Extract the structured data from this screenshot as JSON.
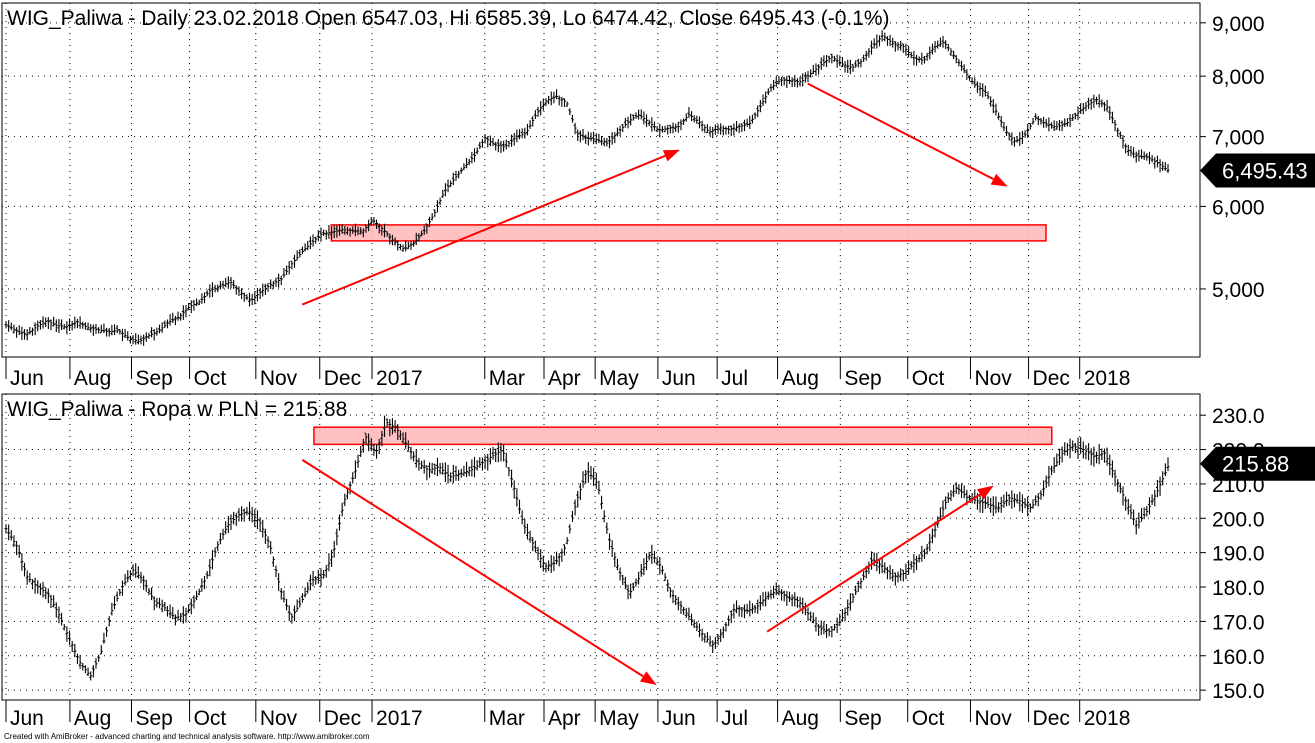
{
  "footer": "Created with AmiBroker - advanced charting and technical analysis software. http://www.amibroker.com",
  "colors": {
    "annotation": "#ff0000",
    "zone_fill": "#ffb6b6",
    "price": "#000000",
    "grid": "#000000"
  },
  "chart_data": [
    {
      "type": "line",
      "style": "ohlc-bars",
      "title": "WIG_Paliwa - Daily 23.02.2018 Open 6547.03, Hi 6585.39, Lo 6474.42, Close 6495.43 (-0.1%)",
      "scale": "log",
      "ylim": [
        4350,
        9300
      ],
      "y_ticks": [
        5000,
        6000,
        7000,
        8000,
        9000
      ],
      "y_tick_labels": [
        "5,000",
        "6,000",
        "7,000",
        "8,000",
        "9,000"
      ],
      "last_value_label": "6,495.43",
      "last_value": 6495.43,
      "grid": "dotted horizontal and vertical",
      "x_ticks": [
        {
          "label": "Jun",
          "t": 0.0
        },
        {
          "label": "Aug",
          "t": 0.055
        },
        {
          "label": "Sep",
          "t": 0.108
        },
        {
          "label": "Oct",
          "t": 0.158
        },
        {
          "label": "Nov",
          "t": 0.215
        },
        {
          "label": "Dec",
          "t": 0.27
        },
        {
          "label": "2017",
          "t": 0.315
        },
        {
          "label": "Mar",
          "t": 0.412
        },
        {
          "label": "Apr",
          "t": 0.463
        },
        {
          "label": "May",
          "t": 0.507
        },
        {
          "label": "Jun",
          "t": 0.561
        },
        {
          "label": "Jul",
          "t": 0.612
        },
        {
          "label": "Aug",
          "t": 0.664
        },
        {
          "label": "Sep",
          "t": 0.718
        },
        {
          "label": "Oct",
          "t": 0.776
        },
        {
          "label": "Nov",
          "t": 0.83
        },
        {
          "label": "Dec",
          "t": 0.88
        },
        {
          "label": "2018",
          "t": 0.924
        }
      ],
      "series": [
        {
          "values": [
            4620,
            4560,
            4520,
            4600,
            4660,
            4610,
            4600,
            4650,
            4590,
            4570,
            4550,
            4560,
            4490,
            4450,
            4510,
            4560,
            4650,
            4700,
            4810,
            4860,
            4980,
            5030,
            5080,
            4960,
            4870,
            4970,
            5050,
            5110,
            5280,
            5420,
            5540,
            5650,
            5670,
            5700,
            5690,
            5680,
            5820,
            5700,
            5560,
            5460,
            5530,
            5680,
            5900,
            6200,
            6380,
            6550,
            6720,
            6980,
            6870,
            6850,
            6990,
            7050,
            7350,
            7580,
            7650,
            7550,
            7050,
            6980,
            6950,
            6900,
            7060,
            7230,
            7350,
            7240,
            7100,
            7130,
            7160,
            7350,
            7230,
            7070,
            7140,
            7110,
            7160,
            7210,
            7480,
            7790,
            7930,
            7920,
            7900,
            8050,
            8210,
            8350,
            8220,
            8150,
            8280,
            8540,
            8750,
            8600,
            8550,
            8330,
            8280,
            8520,
            8630,
            8370,
            8100,
            7850,
            7740,
            7450,
            7100,
            6920,
            7030,
            7300,
            7200,
            7150,
            7200,
            7350,
            7500,
            7600,
            7480,
            7120,
            6800,
            6700,
            6690,
            6600,
            6500
          ]
        }
      ],
      "annotations": [
        {
          "kind": "zone",
          "from_t": 0.28,
          "to_t": 0.895,
          "y_low": 5560,
          "y_high": 5760
        },
        {
          "kind": "arrow",
          "t1": 0.255,
          "y1": 4830,
          "t2": 0.58,
          "y2": 6800
        },
        {
          "kind": "arrow",
          "t1": 0.69,
          "y1": 7870,
          "t2": 0.862,
          "y2": 6270
        }
      ]
    },
    {
      "type": "line",
      "style": "ohlc-bars",
      "title": "WIG_Paliwa - Ropa w PLN = 215.88",
      "scale": "linear",
      "ylim": [
        148,
        235
      ],
      "y_ticks": [
        150,
        160,
        170,
        180,
        190,
        200,
        210,
        220,
        230
      ],
      "y_tick_labels": [
        "150.0",
        "160.0",
        "170.0",
        "180.0",
        "190.0",
        "200.0",
        "210.0",
        "220.0",
        "230.0"
      ],
      "last_value_label": "215.88",
      "last_value": 215.88,
      "grid": "dotted horizontal and vertical",
      "x_ticks": [
        {
          "label": "Jun",
          "t": 0.0
        },
        {
          "label": "Aug",
          "t": 0.055
        },
        {
          "label": "Sep",
          "t": 0.108
        },
        {
          "label": "Oct",
          "t": 0.158
        },
        {
          "label": "Nov",
          "t": 0.215
        },
        {
          "label": "Dec",
          "t": 0.27
        },
        {
          "label": "2017",
          "t": 0.315
        },
        {
          "label": "Mar",
          "t": 0.412
        },
        {
          "label": "Apr",
          "t": 0.463
        },
        {
          "label": "May",
          "t": 0.507
        },
        {
          "label": "Jun",
          "t": 0.561
        },
        {
          "label": "Jul",
          "t": 0.612
        },
        {
          "label": "Aug",
          "t": 0.664
        },
        {
          "label": "Sep",
          "t": 0.718
        },
        {
          "label": "Oct",
          "t": 0.776
        },
        {
          "label": "Nov",
          "t": 0.83
        },
        {
          "label": "Dec",
          "t": 0.88
        },
        {
          "label": "2018",
          "t": 0.924
        }
      ],
      "series": [
        {
          "values": [
            197,
            192,
            183,
            180,
            178,
            172,
            165,
            158,
            154,
            161,
            173,
            180,
            185,
            182,
            176,
            174,
            171,
            172,
            177,
            183,
            192,
            198,
            201,
            202,
            199,
            192,
            179,
            171,
            176,
            182,
            183,
            190,
            205,
            213,
            224,
            219,
            228,
            226,
            221,
            216,
            214,
            215,
            212,
            213,
            214,
            216,
            218,
            220,
            210,
            198,
            192,
            186,
            187,
            192,
            205,
            214,
            210,
            195,
            185,
            178,
            183,
            190,
            186,
            178,
            174,
            170,
            166,
            163,
            168,
            174,
            173,
            174,
            177,
            179,
            177,
            176,
            172,
            168,
            167,
            170,
            176,
            182,
            188,
            186,
            183,
            184,
            187,
            190,
            197,
            205,
            209,
            206,
            205,
            204,
            203,
            206,
            205,
            203,
            207,
            214,
            219,
            221,
            220,
            218,
            219,
            212,
            205,
            198,
            202,
            208,
            215
          ]
        }
      ],
      "annotations": [
        {
          "kind": "zone",
          "from_t": 0.265,
          "to_t": 0.9,
          "y_low": 221.5,
          "y_high": 226.5
        },
        {
          "kind": "arrow",
          "t1": 0.255,
          "y1": 217,
          "t2": 0.56,
          "y2": 151.5
        },
        {
          "kind": "arrow",
          "t1": 0.655,
          "y1": 167,
          "t2": 0.85,
          "y2": 209.5
        }
      ]
    }
  ]
}
